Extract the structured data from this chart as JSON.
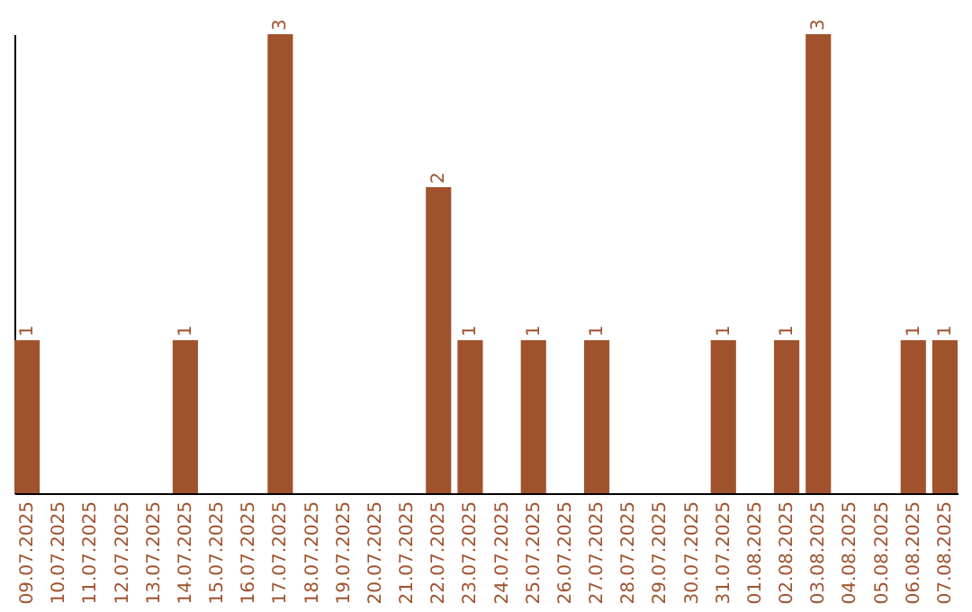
{
  "chart_data": {
    "type": "bar",
    "categories": [
      "09.07.2025",
      "10.07.2025",
      "11.07.2025",
      "12.07.2025",
      "13.07.2025",
      "14.07.2025",
      "15.07.2025",
      "16.07.2025",
      "17.07.2025",
      "18.07.2025",
      "19.07.2025",
      "20.07.2025",
      "21.07.2025",
      "22.07.2025",
      "23.07.2025",
      "24.07.2025",
      "25.07.2025",
      "26.07.2025",
      "27.07.2025",
      "28.07.2025",
      "29.07.2025",
      "30.07.2025",
      "31.07.2025",
      "01.08.2025",
      "02.08.2025",
      "03.08.2025",
      "04.08.2025",
      "05.08.2025",
      "06.08.2025",
      "07.08.2025"
    ],
    "values": [
      1,
      0,
      0,
      0,
      0,
      1,
      0,
      0,
      3,
      0,
      0,
      0,
      0,
      2,
      1,
      0,
      1,
      0,
      1,
      0,
      0,
      0,
      1,
      0,
      1,
      3,
      0,
      0,
      1,
      1
    ],
    "value_labels": [
      "1",
      null,
      null,
      null,
      null,
      "1",
      null,
      null,
      "3",
      null,
      null,
      null,
      null,
      "2",
      "1",
      null,
      "1",
      null,
      "1",
      null,
      null,
      null,
      "1",
      null,
      "1",
      "3",
      null,
      null,
      "1",
      "1"
    ],
    "color": "#a0522d",
    "ylim": [
      0,
      3
    ],
    "tick_labels": "x",
    "grid": false
  }
}
